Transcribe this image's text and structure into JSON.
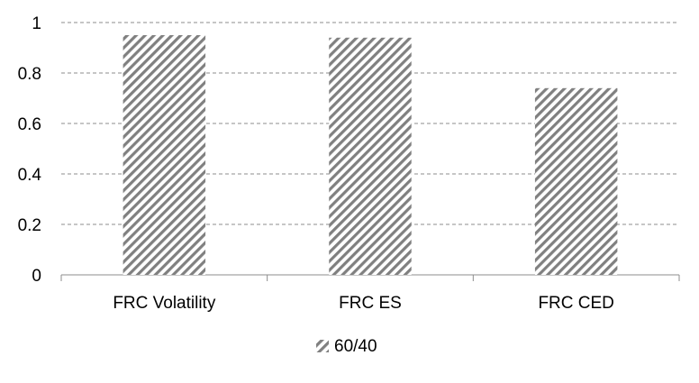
{
  "chart_data": {
    "type": "bar",
    "title": "",
    "xlabel": "",
    "ylabel": "",
    "categories": [
      "FRC Volatility",
      "FRC ES",
      "FRC CED"
    ],
    "series": [
      {
        "name": "60/40",
        "values": [
          0.95,
          0.94,
          0.74
        ],
        "fill": "hatched-diagonal",
        "color": "#808080"
      }
    ],
    "ylim": [
      0,
      1
    ],
    "yticks": [
      "0",
      "0.2",
      "0.4",
      "0.6",
      "0.8",
      "1"
    ],
    "grid": "horizontal-dashed",
    "legend_position": "bottom"
  }
}
